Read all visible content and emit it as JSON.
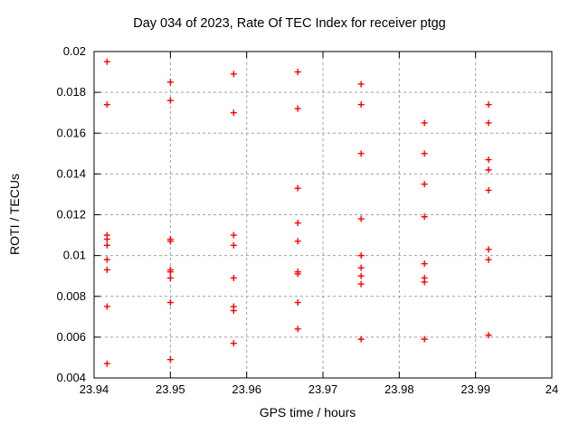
{
  "chart_data": {
    "type": "scatter",
    "title": "Day 034 of 2023, Rate Of TEC Index for receiver ptgg",
    "xlabel": "GPS time / hours",
    "ylabel": "ROTI / TECUs",
    "xlim": [
      23.94,
      24
    ],
    "ylim": [
      0.004,
      0.02
    ],
    "grid": true,
    "legend": "none",
    "marker": "plus",
    "marker_color": "#ff0000",
    "grid_color": "#a0a0a0",
    "border_color": "#000000",
    "xticks": [
      [
        23.94,
        "23.94"
      ],
      [
        23.95,
        "23.95"
      ],
      [
        23.96,
        "23.96"
      ],
      [
        23.97,
        "23.97"
      ],
      [
        23.98,
        "23.98"
      ],
      [
        23.99,
        "23.99"
      ],
      [
        24,
        "24"
      ]
    ],
    "yticks": [
      [
        0.004,
        "0.004"
      ],
      [
        0.006,
        "0.006"
      ],
      [
        0.008,
        "0.008"
      ],
      [
        0.01,
        "0.01"
      ],
      [
        0.012,
        "0.012"
      ],
      [
        0.014,
        "0.014"
      ],
      [
        0.016,
        "0.016"
      ],
      [
        0.018,
        "0.018"
      ],
      [
        0.02,
        "0.02"
      ]
    ],
    "points": [
      [
        23.9417,
        0.0195
      ],
      [
        23.9417,
        0.0174
      ],
      [
        23.9417,
        0.011
      ],
      [
        23.9417,
        0.0108
      ],
      [
        23.9417,
        0.0105
      ],
      [
        23.9417,
        0.0098
      ],
      [
        23.9417,
        0.0093
      ],
      [
        23.9417,
        0.0075
      ],
      [
        23.9417,
        0.0047
      ],
      [
        23.95,
        0.0185
      ],
      [
        23.95,
        0.0176
      ],
      [
        23.95,
        0.0108
      ],
      [
        23.95,
        0.0107
      ],
      [
        23.95,
        0.0093
      ],
      [
        23.95,
        0.0092
      ],
      [
        23.95,
        0.0089
      ],
      [
        23.95,
        0.0077
      ],
      [
        23.95,
        0.0049
      ],
      [
        23.9583,
        0.0189
      ],
      [
        23.9583,
        0.017
      ],
      [
        23.9583,
        0.011
      ],
      [
        23.9583,
        0.0105
      ],
      [
        23.9583,
        0.0089
      ],
      [
        23.9583,
        0.0075
      ],
      [
        23.9583,
        0.0073
      ],
      [
        23.9583,
        0.0057
      ],
      [
        23.9667,
        0.019
      ],
      [
        23.9667,
        0.0172
      ],
      [
        23.9667,
        0.0133
      ],
      [
        23.9667,
        0.0116
      ],
      [
        23.9667,
        0.0107
      ],
      [
        23.9667,
        0.0092
      ],
      [
        23.9667,
        0.0091
      ],
      [
        23.9667,
        0.0077
      ],
      [
        23.9667,
        0.0064
      ],
      [
        23.975,
        0.0184
      ],
      [
        23.975,
        0.0174
      ],
      [
        23.975,
        0.015
      ],
      [
        23.975,
        0.0118
      ],
      [
        23.975,
        0.01
      ],
      [
        23.975,
        0.0094
      ],
      [
        23.975,
        0.009
      ],
      [
        23.975,
        0.0086
      ],
      [
        23.975,
        0.0059
      ],
      [
        23.9833,
        0.0165
      ],
      [
        23.9833,
        0.015
      ],
      [
        23.9833,
        0.0135
      ],
      [
        23.9833,
        0.0119
      ],
      [
        23.9833,
        0.0096
      ],
      [
        23.9833,
        0.0089
      ],
      [
        23.9833,
        0.0087
      ],
      [
        23.9833,
        0.0059
      ],
      [
        23.9917,
        0.0174
      ],
      [
        23.9917,
        0.0165
      ],
      [
        23.9917,
        0.0147
      ],
      [
        23.9917,
        0.0142
      ],
      [
        23.9917,
        0.0132
      ],
      [
        23.9917,
        0.0103
      ],
      [
        23.9917,
        0.0098
      ],
      [
        23.9917,
        0.0061
      ]
    ]
  }
}
